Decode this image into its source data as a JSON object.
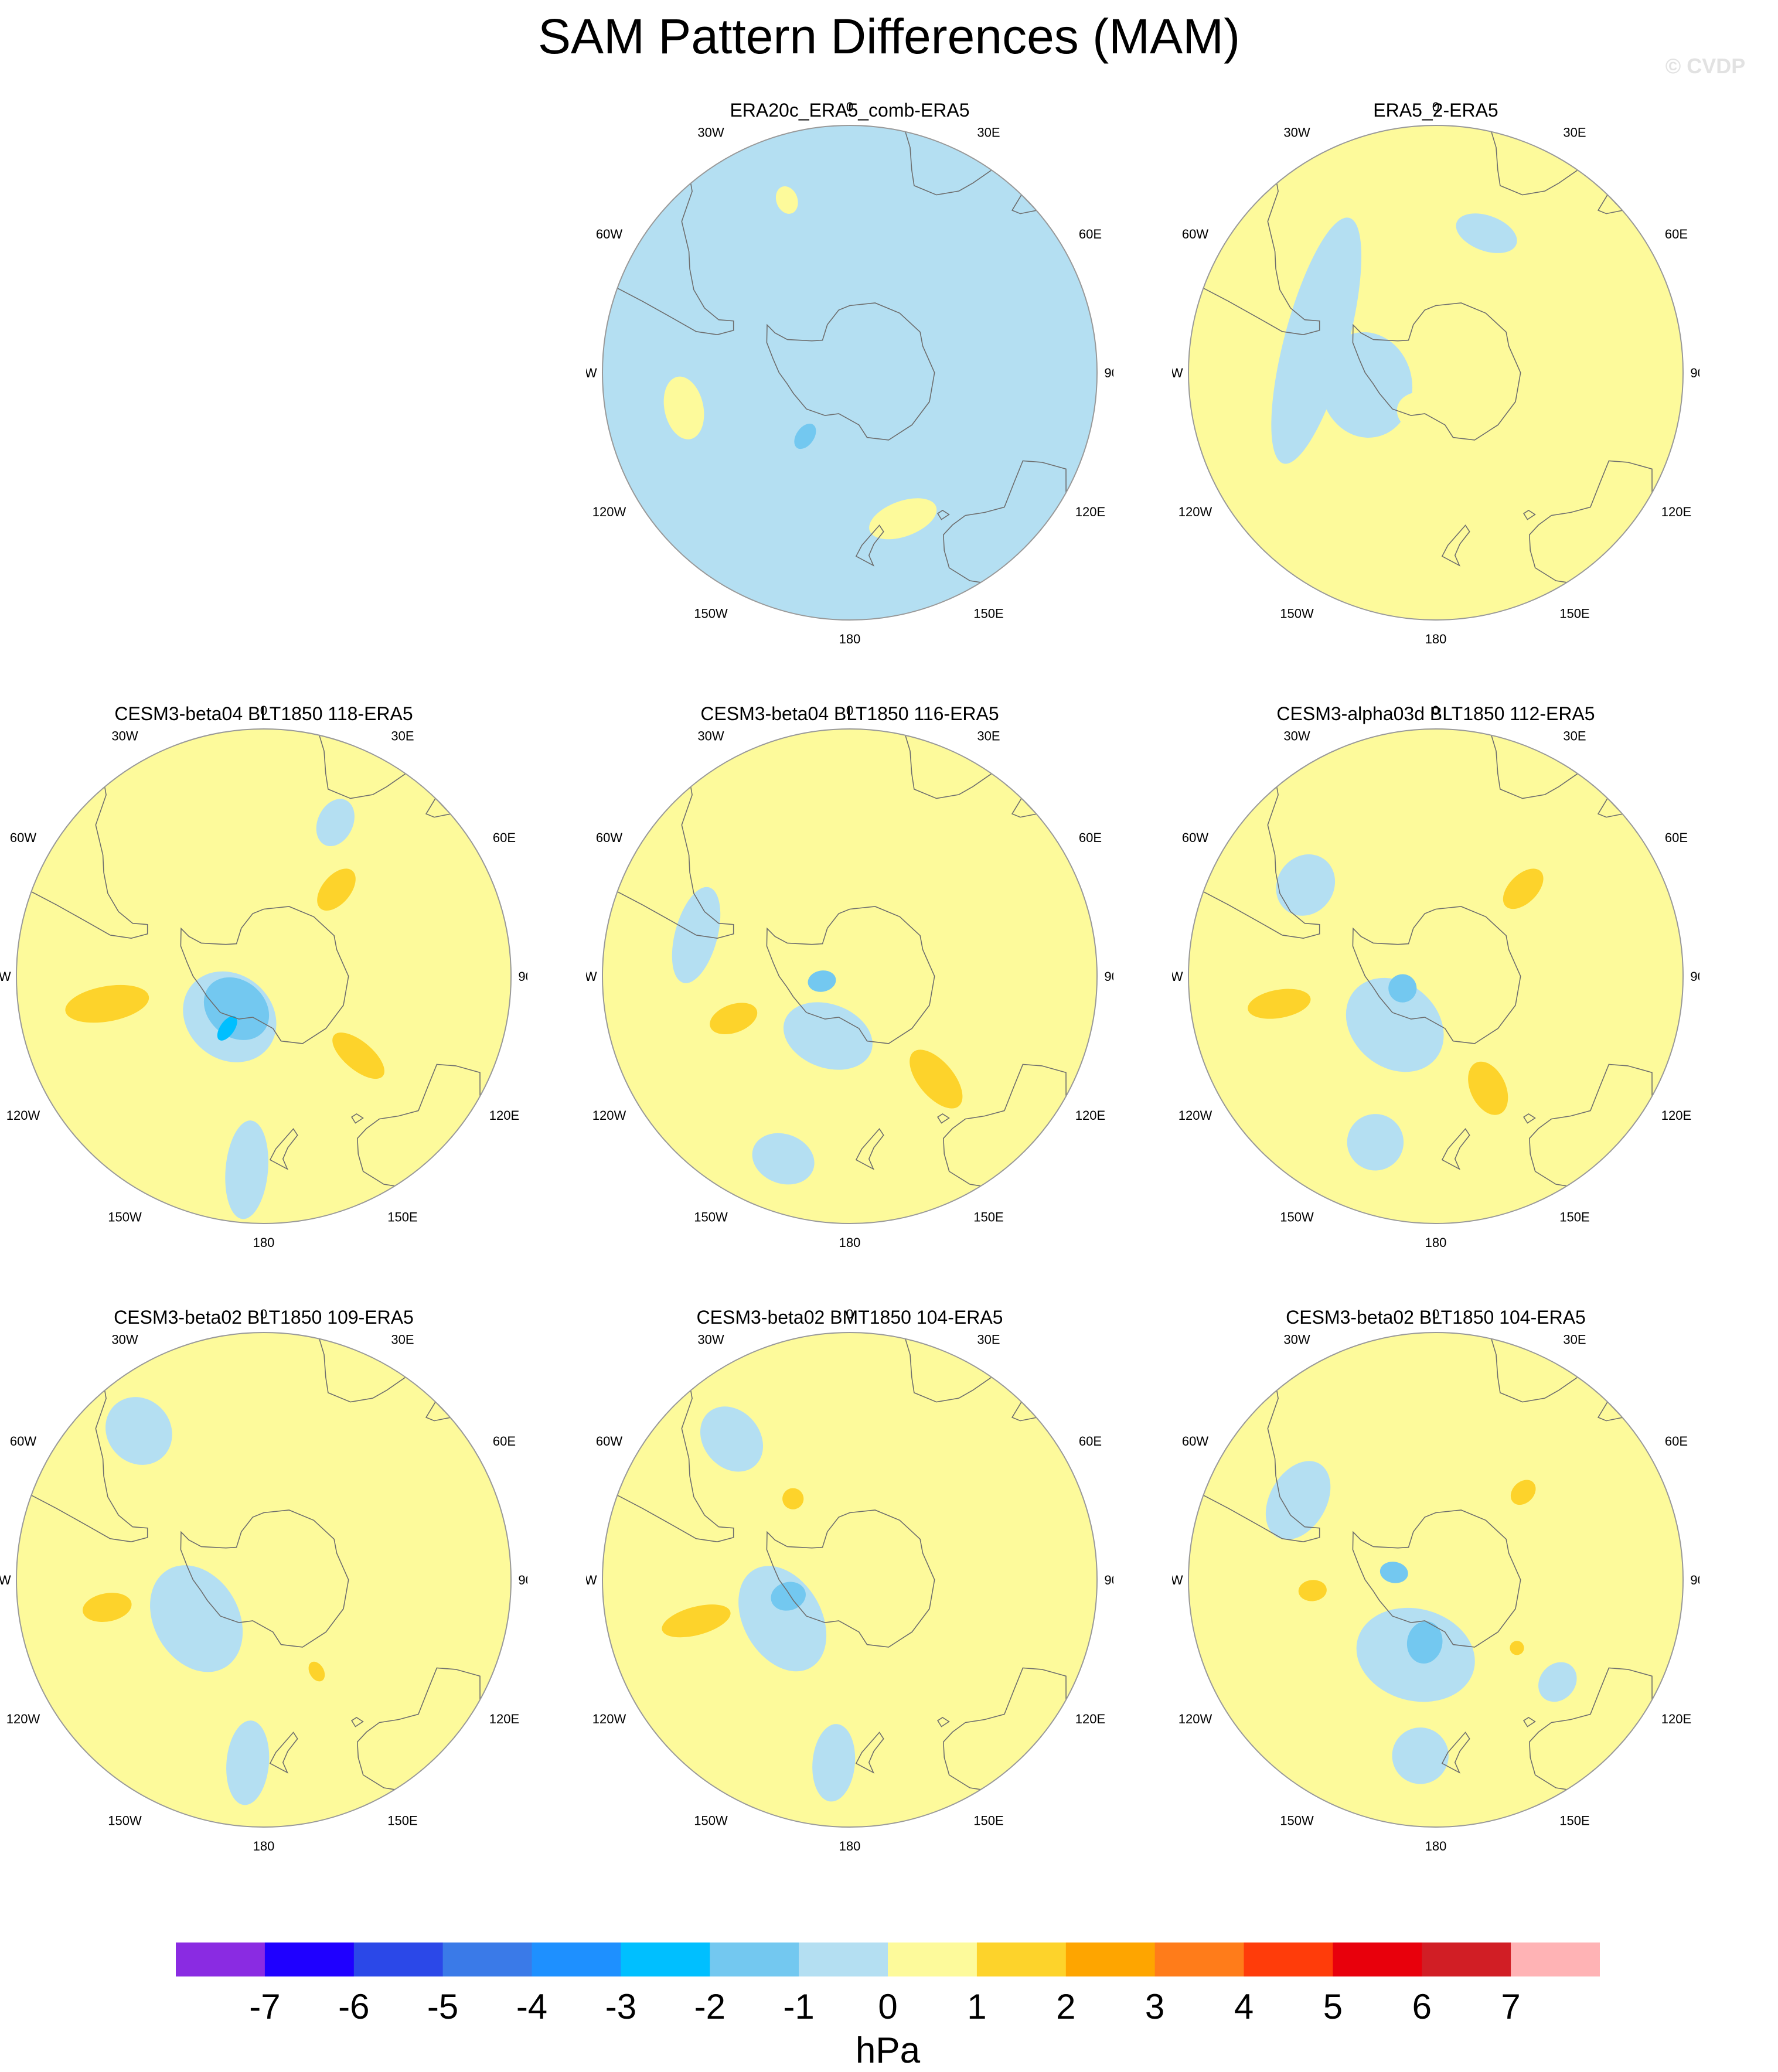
{
  "title": "SAM Pattern Differences (MAM)",
  "watermark": "© CVDP",
  "longitude_labels": [
    "0",
    "30E",
    "60E",
    "90E",
    "120E",
    "150E",
    "180",
    "150W",
    "120W",
    "90W",
    "60W",
    "30W"
  ],
  "panels": [
    {
      "title": "ERA20c_ERA5_comb-ERA5",
      "background_level": -1,
      "features": [
        {
          "level": 1,
          "lat": -42,
          "lon": -102,
          "rx": 9,
          "ry": 5.5
        },
        {
          "level": 1,
          "lat": -46,
          "lon": 160,
          "rx": 10,
          "ry": 5
        },
        {
          "level": 1,
          "lat": -38,
          "lon": -20,
          "rx": 3,
          "ry": 4
        },
        {
          "level": -2,
          "lat": -68,
          "lon": -145,
          "rx": 2.5,
          "ry": 4
        }
      ]
    },
    {
      "title": "ERA5_2-ERA5",
      "background_level": 1,
      "features": [
        {
          "level": -1,
          "lat": -55,
          "lon": -75,
          "rx": 36,
          "ry": 9
        },
        {
          "level": -1,
          "lat": -48,
          "lon": 20,
          "rx": 9,
          "ry": 5
        },
        {
          "level": -1,
          "lat": -70,
          "lon": -100,
          "rx": 15,
          "ry": 13
        },
        {
          "level": 1,
          "lat": -78,
          "lon": -165,
          "rx": 8,
          "ry": 6
        }
      ]
    },
    {
      "title": "CESM3-beta04 BLT1850 118-ERA5",
      "background_level": 1,
      "features": [
        {
          "level": -1,
          "lat": -75,
          "lon": -140,
          "rx": 14,
          "ry": 12
        },
        {
          "level": -2,
          "lat": -78,
          "lon": -140,
          "rx": 10,
          "ry": 8
        },
        {
          "level": -3,
          "lat": -72,
          "lon": -145,
          "rx": 2,
          "ry": 4
        },
        {
          "level": 2,
          "lat": -45,
          "lon": -100,
          "rx": 5,
          "ry": 12
        },
        {
          "level": 2,
          "lat": -55,
          "lon": 130,
          "rx": 4,
          "ry": 9
        },
        {
          "level": 2,
          "lat": -58,
          "lon": 40,
          "rx": 4,
          "ry": 7
        },
        {
          "level": -1,
          "lat": -35,
          "lon": -175,
          "rx": 6,
          "ry": 14
        },
        {
          "level": -1,
          "lat": -42,
          "lon": 25,
          "rx": 5,
          "ry": 7
        }
      ]
    },
    {
      "title": "CESM3-beta04 BLT1850 116-ERA5",
      "background_level": 1,
      "features": [
        {
          "level": -1,
          "lat": -72,
          "lon": -160,
          "rx": 13,
          "ry": 9
        },
        {
          "level": -2,
          "lat": -82,
          "lon": -100,
          "rx": 3,
          "ry": 4
        },
        {
          "level": 2,
          "lat": -55,
          "lon": -110,
          "rx": 4,
          "ry": 7
        },
        {
          "level": 2,
          "lat": -52,
          "lon": 140,
          "rx": 5,
          "ry": 10
        },
        {
          "level": -1,
          "lat": -35,
          "lon": -160,
          "rx": 9,
          "ry": 7
        },
        {
          "level": -1,
          "lat": -45,
          "lon": -75,
          "rx": 14,
          "ry": 6
        }
      ]
    },
    {
      "title": "CESM3-alpha03d BLT1850 112-ERA5",
      "background_level": 1,
      "features": [
        {
          "level": -1,
          "lat": -72,
          "lon": -140,
          "rx": 15,
          "ry": 12
        },
        {
          "level": -2,
          "lat": -80,
          "lon": -110,
          "rx": 4,
          "ry": 4
        },
        {
          "level": 2,
          "lat": -45,
          "lon": -100,
          "rx": 4,
          "ry": 9
        },
        {
          "level": 2,
          "lat": -55,
          "lon": 155,
          "rx": 5,
          "ry": 8
        },
        {
          "level": 2,
          "lat": -55,
          "lon": 45,
          "rx": 4,
          "ry": 7
        },
        {
          "level": -1,
          "lat": -40,
          "lon": -160,
          "rx": 8,
          "ry": 8
        },
        {
          "level": -1,
          "lat": -45,
          "lon": -55,
          "rx": 9,
          "ry": 8
        }
      ]
    },
    {
      "title": "CESM3-beta02 BLT1850 109-ERA5",
      "background_level": 1,
      "features": [
        {
          "level": -1,
          "lat": -68,
          "lon": -120,
          "rx": 16,
          "ry": 12
        },
        {
          "level": -1,
          "lat": -35,
          "lon": -40,
          "rx": 9,
          "ry": 10
        },
        {
          "level": -1,
          "lat": -38,
          "lon": -175,
          "rx": 6,
          "ry": 12
        },
        {
          "level": 2,
          "lat": -45,
          "lon": -100,
          "rx": 4,
          "ry": 7
        },
        {
          "level": 2,
          "lat": -60,
          "lon": 150,
          "rx": 2,
          "ry": 3
        }
      ]
    },
    {
      "title": "CESM3-beta02 BMT1850 104-ERA5",
      "background_level": 1,
      "features": [
        {
          "level": -1,
          "lat": -68,
          "lon": -120,
          "rx": 16,
          "ry": 11
        },
        {
          "level": -2,
          "lat": -72,
          "lon": -105,
          "rx": 4,
          "ry": 5
        },
        {
          "level": 2,
          "lat": -45,
          "lon": -105,
          "rx": 4,
          "ry": 10
        },
        {
          "level": 2,
          "lat": -62,
          "lon": -35,
          "rx": 3,
          "ry": 3
        },
        {
          "level": -1,
          "lat": -38,
          "lon": -40,
          "rx": 8,
          "ry": 10
        },
        {
          "level": -1,
          "lat": -38,
          "lon": -175,
          "rx": 6,
          "ry": 11
        }
      ]
    },
    {
      "title": "CESM3-beta02 BLT1850 104-ERA5",
      "background_level": 1,
      "features": [
        {
          "level": -1,
          "lat": -68,
          "lon": -165,
          "rx": 17,
          "ry": 13
        },
        {
          "level": -2,
          "lat": -72,
          "lon": -170,
          "rx": 5,
          "ry": 6
        },
        {
          "level": -2,
          "lat": -78,
          "lon": -80,
          "rx": 3,
          "ry": 4
        },
        {
          "level": 2,
          "lat": -55,
          "lon": -95,
          "rx": 3,
          "ry": 4
        },
        {
          "level": 2,
          "lat": -55,
          "lon": 45,
          "rx": 3,
          "ry": 4
        },
        {
          "level": 2,
          "lat": -60,
          "lon": 130,
          "rx": 2,
          "ry": 2
        },
        {
          "level": -1,
          "lat": -40,
          "lon": -175,
          "rx": 8,
          "ry": 8
        },
        {
          "level": -1,
          "lat": -45,
          "lon": -60,
          "rx": 12,
          "ry": 8
        },
        {
          "level": -1,
          "lat": -45,
          "lon": 130,
          "rx": 6,
          "ry": 5
        }
      ]
    }
  ],
  "colorbar": {
    "unit": "hPa",
    "tick_labels": [
      "-7",
      "-6",
      "-5",
      "-4",
      "-3",
      "-2",
      "-1",
      "0",
      "1",
      "2",
      "3",
      "4",
      "5",
      "6",
      "7"
    ],
    "colors": [
      "#8a2be2",
      "#1f00ff",
      "#2b48e8",
      "#3a7ae8",
      "#1e90ff",
      "#00bfff",
      "#73c8f0",
      "#b4dff2",
      "#fdfa9b",
      "#fdd32b",
      "#fea500",
      "#ff7c1a",
      "#ff3c0a",
      "#e8000c",
      "#d11e25",
      "#ffb3b5"
    ]
  },
  "level_colors": {
    "-3": "#00bfff",
    "-2": "#73c8f0",
    "-1": "#b4dff2",
    "1": "#fdfa9b",
    "2": "#fdd32b"
  },
  "coastline_color": "#6d6d6d"
}
